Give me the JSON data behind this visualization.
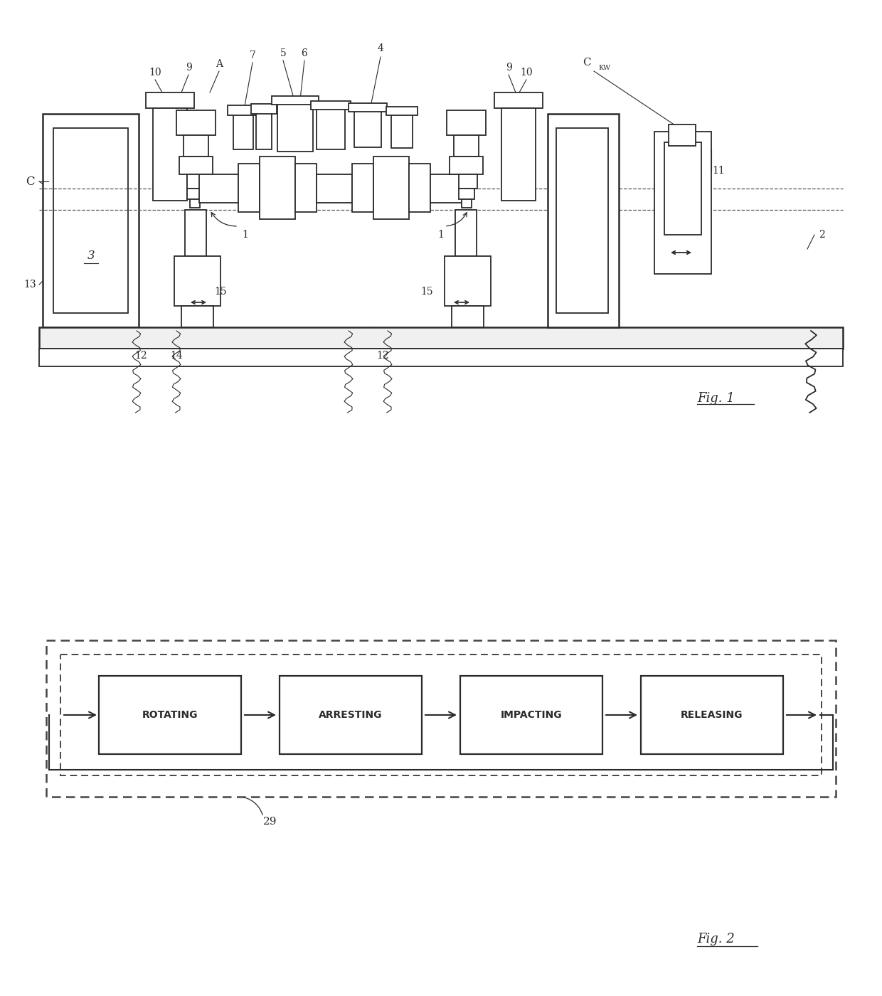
{
  "fig_width": 12.4,
  "fig_height": 14.0,
  "bg_color": "#ffffff",
  "lc": "#2a2a2a",
  "lw_main": 1.8,
  "lw_med": 1.3,
  "lw_thin": 0.8,
  "fig1": {
    "title": "Fig. 1",
    "fig2_title": "Fig. 2",
    "steps": [
      "ROTATING",
      "ARRESTING",
      "IMPACTING",
      "RELEASING"
    ],
    "label29": "29"
  }
}
